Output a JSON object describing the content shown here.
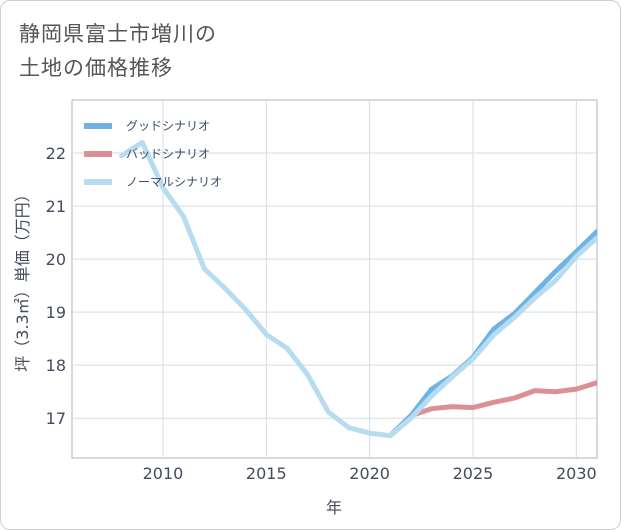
{
  "title_line1": "静岡県富士市増川の",
  "title_line2": "土地の価格推移",
  "chart_data": {
    "type": "line",
    "xlabel": "年",
    "ylabel": "坪（3.3㎡）単価（万円）",
    "xlim": [
      2005.6,
      2031
    ],
    "ylim": [
      16.25,
      23.0
    ],
    "xticks": [
      2010,
      2015,
      2020,
      2025,
      2030
    ],
    "yticks": [
      17,
      18,
      19,
      20,
      21,
      22
    ],
    "grid": true,
    "legend_position": "top-left",
    "series": [
      {
        "name": "グッドシナリオ",
        "color": "#6fb3e6",
        "x": [
          2021,
          2022,
          2023,
          2024,
          2025,
          2026,
          2027,
          2028,
          2029,
          2030,
          2031
        ],
        "y": [
          16.67,
          17.05,
          17.55,
          17.8,
          18.15,
          18.68,
          18.97,
          19.37,
          19.77,
          20.14,
          20.52
        ]
      },
      {
        "name": "バッドシナリオ",
        "color": "#dc8f95",
        "x": [
          2021,
          2022,
          2023,
          2024,
          2025,
          2026,
          2027,
          2028,
          2029,
          2030,
          2031
        ],
        "y": [
          16.67,
          17.05,
          17.18,
          17.22,
          17.2,
          17.3,
          17.38,
          17.52,
          17.5,
          17.55,
          17.67
        ]
      },
      {
        "name": "ノーマルシナリオ",
        "color": "#b7dcef",
        "x": [
          2008,
          2009,
          2010,
          2011,
          2012,
          2013,
          2014,
          2015,
          2016,
          2017,
          2018,
          2019,
          2020,
          2021,
          2022,
          2023,
          2024,
          2025,
          2026,
          2027,
          2028,
          2029,
          2030,
          2031
        ],
        "y": [
          21.95,
          22.2,
          21.35,
          20.8,
          19.82,
          19.45,
          19.05,
          18.58,
          18.32,
          17.82,
          17.12,
          16.82,
          16.72,
          16.67,
          17.0,
          17.42,
          17.78,
          18.12,
          18.57,
          18.9,
          19.27,
          19.6,
          20.05,
          20.4
        ]
      }
    ]
  }
}
